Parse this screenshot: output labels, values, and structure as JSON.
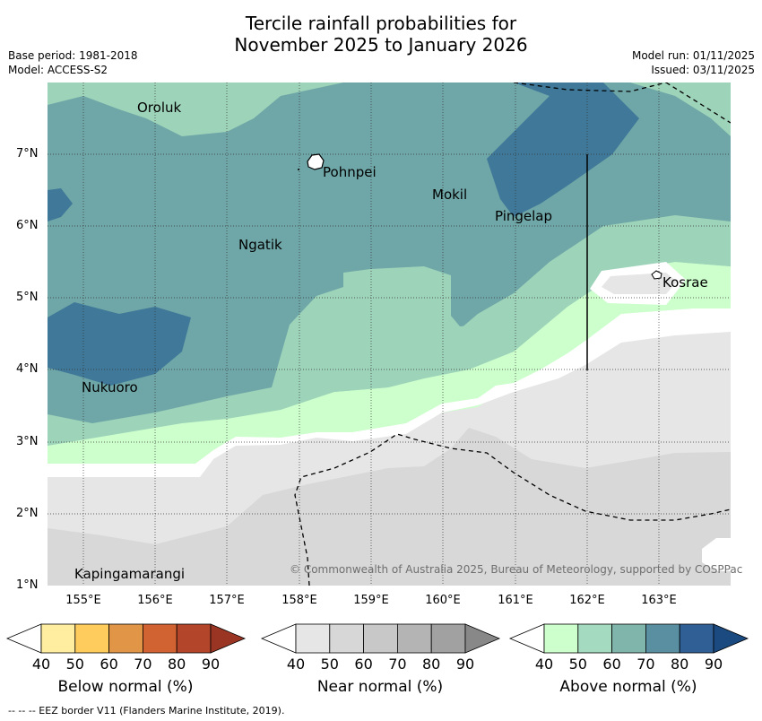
{
  "header": {
    "title_line1": "Tercile rainfall probabilities for",
    "title_line2": "November 2025 to January 2026",
    "base_period": "Base period: 1981-2018",
    "model": "Model: ACCESS-S2",
    "model_run": "Model run: 01/11/2025",
    "issued": "Issued: 03/11/2025"
  },
  "map": {
    "lat_labels": [
      "7°N",
      "6°N",
      "5°N",
      "4°N",
      "3°N",
      "2°N",
      "1°N"
    ],
    "lon_labels": [
      "155°E",
      "156°E",
      "157°E",
      "158°E",
      "159°E",
      "160°E",
      "161°E",
      "162°E",
      "163°E"
    ],
    "places": {
      "oroluk": "Oroluk",
      "pohnpei": "Pohnpei",
      "mokil": "Mokil",
      "pingelap": "Pingelap",
      "ngatik": "Ngatik",
      "kosrae": "Kosrae",
      "nukuoro": "Nukuoro",
      "kapingamarangi": "Kapingamarangi"
    },
    "copyright": "© Commonwealth of Australia 2025, Bureau of Meteorology, supported by COSPPac",
    "colors": {
      "above_50": "#ccffcc",
      "above_60": "#9dd3b9",
      "above_70": "#6fa6a7",
      "above_80": "#3f7898",
      "near_40": "#e6e6e6",
      "near_50": "#d8d8d8",
      "below_40": "#ffeda0"
    }
  },
  "legend": {
    "below": {
      "label": "Below normal (%)",
      "ticks": [
        "40",
        "50",
        "60",
        "70",
        "80",
        "90"
      ],
      "colors": [
        "#ffeda0",
        "#fecc5c",
        "#e09547",
        "#d16231",
        "#b2452a",
        "#9a3524"
      ]
    },
    "near": {
      "label": "Near normal (%)",
      "ticks": [
        "40",
        "50",
        "60",
        "70",
        "80",
        "90"
      ],
      "colors": [
        "#e6e6e6",
        "#d7d7d7",
        "#c8c8c8",
        "#b4b4b4",
        "#a1a1a1",
        "#888888"
      ]
    },
    "above": {
      "label": "Above normal (%)",
      "ticks": [
        "40",
        "50",
        "60",
        "70",
        "80",
        "90"
      ],
      "colors": [
        "#ccffcc",
        "#a4dabf",
        "#80b5ab",
        "#5a8fa1",
        "#2f5f94",
        "#1a4a80"
      ]
    }
  },
  "footer": "--  --  -- EEZ border V11 (Flanders Marine Institute, 2019)."
}
